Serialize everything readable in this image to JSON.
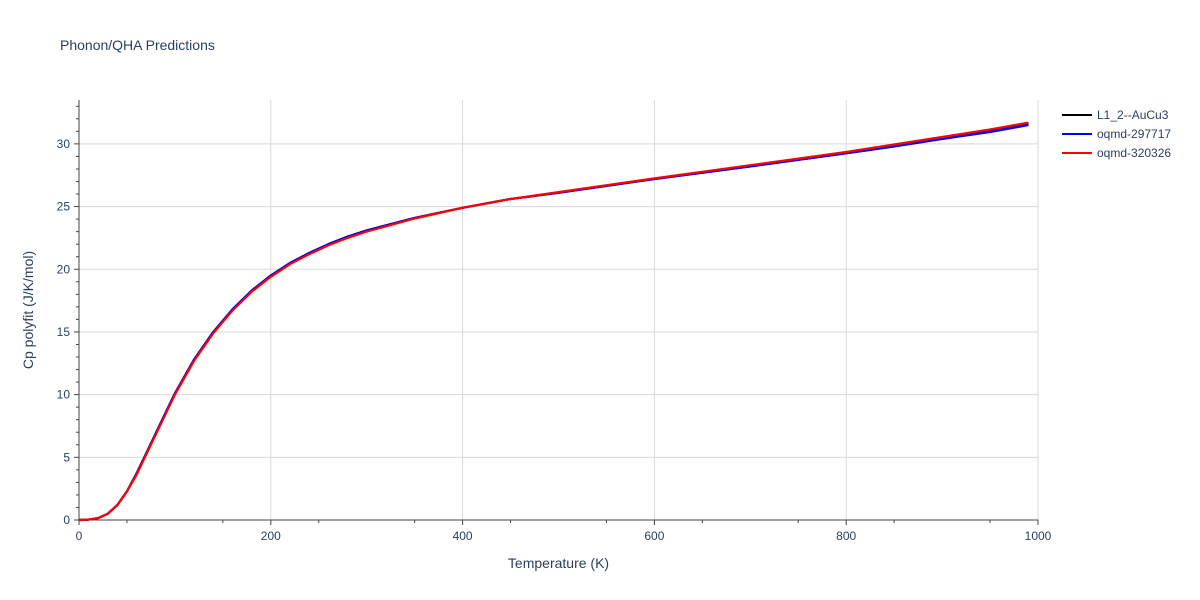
{
  "chart_data": {
    "type": "line",
    "title": "Phonon/QHA Predictions",
    "xlabel": "Temperature (K)",
    "ylabel": "Cp polyfit (J/K/mol)",
    "xlim": [
      0,
      1000
    ],
    "ylim": [
      0,
      33.5
    ],
    "grid": true,
    "legend_position": "top-right",
    "x_ticks": [
      "0",
      "200",
      "400",
      "600",
      "800",
      "1000"
    ],
    "y_ticks": [
      "0",
      "5",
      "10",
      "15",
      "20",
      "25",
      "30"
    ],
    "x": [
      0,
      10,
      20,
      30,
      40,
      50,
      60,
      70,
      80,
      90,
      100,
      120,
      140,
      160,
      180,
      200,
      220,
      240,
      260,
      280,
      300,
      350,
      400,
      450,
      500,
      600,
      700,
      800,
      850,
      900,
      950,
      990
    ],
    "series": [
      {
        "name": "L1_2--AuCu3",
        "color": "#000000",
        "values": [
          0,
          0.03,
          0.15,
          0.5,
          1.2,
          2.3,
          3.7,
          5.3,
          6.9,
          8.5,
          10.1,
          12.8,
          15.0,
          16.8,
          18.3,
          19.5,
          20.5,
          21.3,
          22.0,
          22.6,
          23.1,
          24.1,
          24.9,
          25.6,
          26.1,
          27.2,
          28.2,
          29.25,
          29.8,
          30.4,
          31.0,
          31.6
        ]
      },
      {
        "name": "oqmd-297717",
        "color": "#0000ff",
        "values": [
          0,
          0.03,
          0.15,
          0.5,
          1.2,
          2.3,
          3.7,
          5.3,
          6.9,
          8.5,
          10.1,
          12.8,
          15.0,
          16.8,
          18.3,
          19.5,
          20.5,
          21.3,
          22.0,
          22.6,
          23.1,
          24.1,
          24.9,
          25.6,
          26.1,
          27.2,
          28.2,
          29.25,
          29.8,
          30.4,
          30.95,
          31.5
        ]
      },
      {
        "name": "oqmd-320326",
        "color": "#ff0000",
        "values": [
          0,
          0.03,
          0.15,
          0.5,
          1.2,
          2.3,
          3.6,
          5.2,
          6.8,
          8.4,
          10.0,
          12.7,
          14.9,
          16.7,
          18.2,
          19.4,
          20.4,
          21.2,
          21.9,
          22.5,
          23.0,
          24.05,
          24.9,
          25.6,
          26.15,
          27.25,
          28.3,
          29.35,
          29.95,
          30.55,
          31.15,
          31.7
        ]
      }
    ]
  }
}
